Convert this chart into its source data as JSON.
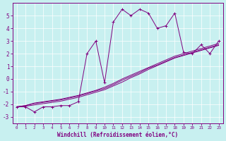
{
  "xlabel": "Windchill (Refroidissement éolien,°C)",
  "background_color": "#c8f0f0",
  "line_color": "#800080",
  "xlim": [
    -0.5,
    23.5
  ],
  "ylim": [
    -3.5,
    6.0
  ],
  "xticks": [
    0,
    1,
    2,
    3,
    4,
    5,
    6,
    7,
    8,
    9,
    10,
    11,
    12,
    13,
    14,
    15,
    16,
    17,
    18,
    19,
    20,
    21,
    22,
    23
  ],
  "yticks": [
    -3,
    -2,
    -1,
    0,
    1,
    2,
    3,
    4,
    5
  ],
  "series1_x": [
    0,
    1,
    2,
    3,
    4,
    5,
    6,
    7,
    8,
    9,
    10,
    11,
    12,
    13,
    14,
    15,
    16,
    17,
    18,
    19,
    20,
    21,
    22,
    23
  ],
  "series1_y": [
    -2.2,
    -2.2,
    -2.6,
    -2.2,
    -2.2,
    -2.1,
    -2.1,
    -1.8,
    2.0,
    3.0,
    -0.3,
    4.5,
    5.5,
    5.0,
    5.5,
    5.2,
    4.0,
    4.2,
    5.2,
    2.1,
    2.0,
    2.7,
    2.0,
    3.0
  ],
  "series2_x": [
    0,
    1,
    2,
    3,
    4,
    5,
    6,
    7,
    8,
    9,
    10,
    11,
    12,
    13,
    14,
    15,
    16,
    17,
    18,
    19,
    20,
    21,
    22,
    23
  ],
  "series2_y": [
    -2.2,
    -2.15,
    -2.05,
    -1.95,
    -1.85,
    -1.75,
    -1.6,
    -1.45,
    -1.25,
    -1.05,
    -0.85,
    -0.55,
    -0.25,
    0.1,
    0.4,
    0.75,
    1.05,
    1.35,
    1.65,
    1.85,
    2.05,
    2.25,
    2.45,
    2.65
  ],
  "series3_x": [
    0,
    1,
    2,
    3,
    4,
    5,
    6,
    7,
    8,
    9,
    10,
    11,
    12,
    13,
    14,
    15,
    16,
    17,
    18,
    19,
    20,
    21,
    22,
    23
  ],
  "series3_y": [
    -2.2,
    -2.1,
    -1.95,
    -1.85,
    -1.75,
    -1.65,
    -1.5,
    -1.35,
    -1.15,
    -0.95,
    -0.75,
    -0.45,
    -0.1,
    0.2,
    0.5,
    0.85,
    1.1,
    1.4,
    1.7,
    1.9,
    2.1,
    2.3,
    2.5,
    2.7
  ],
  "series4_x": [
    0,
    1,
    2,
    3,
    4,
    5,
    6,
    7,
    8,
    9,
    10,
    11,
    12,
    13,
    14,
    15,
    16,
    17,
    18,
    19,
    20,
    21,
    22,
    23
  ],
  "series4_y": [
    -2.2,
    -2.1,
    -1.9,
    -1.8,
    -1.7,
    -1.6,
    -1.45,
    -1.3,
    -1.1,
    -0.9,
    -0.65,
    -0.35,
    -0.0,
    0.3,
    0.6,
    0.9,
    1.2,
    1.5,
    1.8,
    2.0,
    2.2,
    2.4,
    2.6,
    2.8
  ]
}
